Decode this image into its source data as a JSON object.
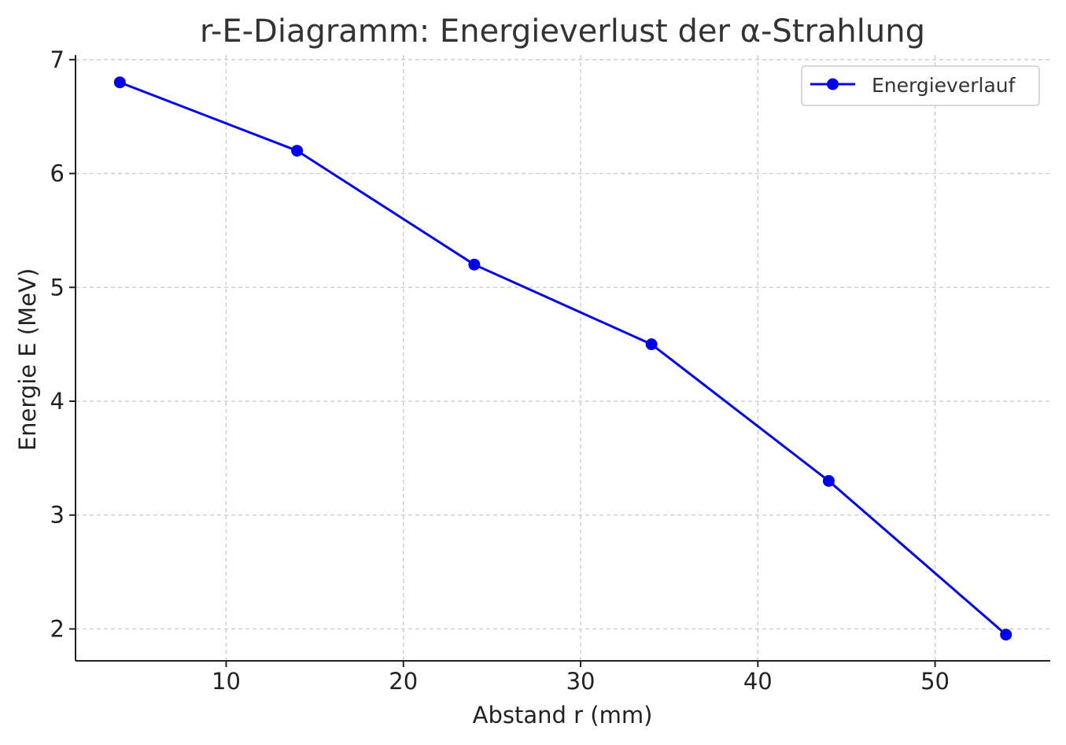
{
  "chart_data": {
    "type": "line",
    "title": "r-E-Diagramm: Energieverlust der α-Strahlung",
    "xlabel": "Abstand r (mm)",
    "ylabel": "Energie E (MeV)",
    "x": [
      4,
      14,
      24,
      34,
      44,
      54
    ],
    "series": [
      {
        "name": "Energieverlauf",
        "values": [
          6.8,
          6.2,
          5.2,
          4.5,
          3.3,
          1.95
        ],
        "color": "#0000ee",
        "marker": "circle"
      }
    ],
    "xlim": [
      1.5,
      56.5
    ],
    "ylim": [
      1.72,
      7.04
    ],
    "xticks": [
      10,
      20,
      30,
      40,
      50
    ],
    "yticks": [
      2,
      3,
      4,
      5,
      6,
      7
    ],
    "grid": true,
    "legend_position": "top-right"
  }
}
